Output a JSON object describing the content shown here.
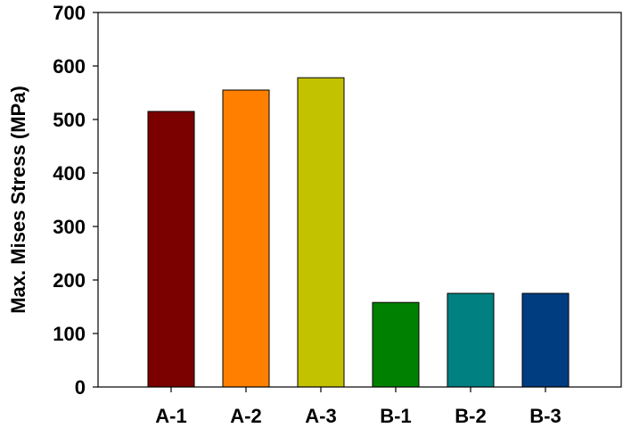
{
  "chart_data": {
    "type": "bar",
    "title": "",
    "xlabel": "",
    "ylabel": "Max. Mises Stress (MPa)",
    "ylim": [
      0,
      700
    ],
    "yticks": [
      "0",
      "100",
      "200",
      "300",
      "400",
      "500",
      "600",
      "700"
    ],
    "categories": [
      "A-1",
      "A-2",
      "A-3",
      "B-1",
      "B-2",
      "B-3"
    ],
    "values": [
      515,
      555,
      578,
      158,
      175,
      175
    ],
    "colors": [
      "#7b0000",
      "#ff8000",
      "#c2c200",
      "#008000",
      "#008080",
      "#003c80"
    ],
    "grid": false,
    "legend": "none"
  }
}
